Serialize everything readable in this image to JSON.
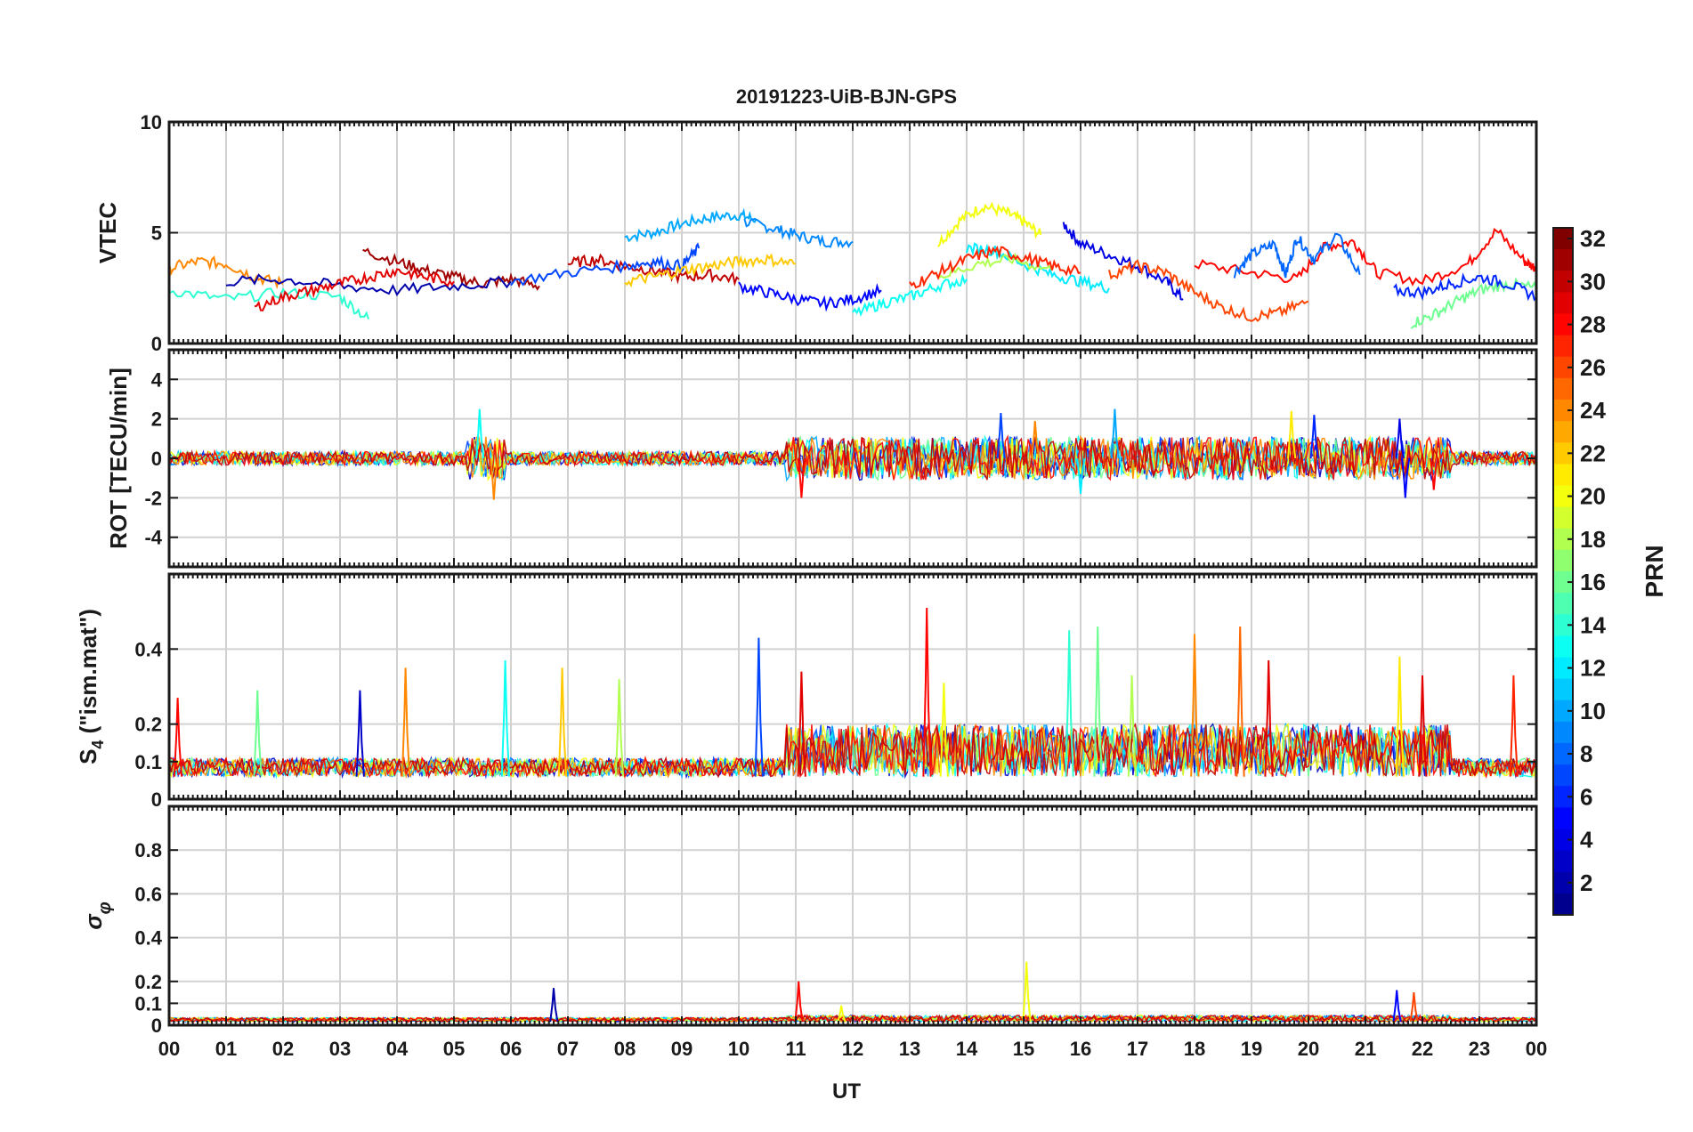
{
  "chart_data": {
    "type": "line",
    "title": "20191223-UiB-BJN-GPS",
    "xlabel": "UT",
    "x_range": [
      0,
      24
    ],
    "x_tick_labels": [
      "00",
      "01",
      "02",
      "03",
      "04",
      "05",
      "06",
      "07",
      "08",
      "09",
      "10",
      "11",
      "12",
      "13",
      "14",
      "15",
      "16",
      "17",
      "18",
      "19",
      "20",
      "21",
      "22",
      "23",
      "00"
    ],
    "grid": true,
    "panels": [
      {
        "id": "vtec",
        "ylabel": "VTEC",
        "ylim": [
          0,
          10
        ],
        "y_ticks": [
          0,
          5,
          10
        ],
        "y_tick_labels": [
          "0",
          "5",
          "10"
        ],
        "series": [
          {
            "prn": 10,
            "x": [
              8.0,
              8.5,
              9.0,
              9.5,
              10.0,
              10.3
            ],
            "y": [
              4.8,
              5.0,
              5.4,
              5.7,
              5.8,
              5.6
            ]
          },
          {
            "prn": 9,
            "x": [
              10.1,
              10.6,
              11.0,
              11.5,
              12.0
            ],
            "y": [
              5.5,
              5.2,
              4.9,
              4.6,
              4.6
            ]
          },
          {
            "prn": 20,
            "x": [
              13.5,
              13.9,
              14.3,
              14.7,
              15.0,
              15.3
            ],
            "y": [
              4.5,
              5.6,
              6.2,
              5.9,
              5.5,
              4.9
            ]
          },
          {
            "prn": 4,
            "x": [
              15.7,
              16.0,
              16.5,
              17.0,
              17.5,
              17.8
            ],
            "y": [
              5.4,
              4.5,
              4.0,
              3.5,
              2.8,
              2.0
            ]
          },
          {
            "prn": 28,
            "x": [
              18.0,
              19.0,
              19.8,
              20.3,
              20.8,
              21.2,
              22.0,
              22.8,
              23.3,
              23.8,
              24.0
            ],
            "y": [
              3.6,
              3.2,
              2.9,
              4.4,
              4.6,
              3.2,
              2.8,
              3.6,
              5.1,
              3.7,
              3.4
            ]
          },
          {
            "prn": 8,
            "x": [
              18.7,
              19.0,
              19.4,
              19.6,
              19.8,
              20.1,
              20.5,
              20.9
            ],
            "y": [
              3.2,
              4.0,
              4.5,
              3.1,
              4.8,
              3.8,
              4.9,
              3.1
            ]
          },
          {
            "prn": 24,
            "x": [
              0.0,
              0.5,
              1.0,
              1.5,
              2.0
            ],
            "y": [
              3.4,
              3.7,
              3.6,
              3.0,
              2.7
            ]
          },
          {
            "prn": 14,
            "x": [
              0.0,
              1.0,
              2.0,
              3.0,
              3.5
            ],
            "y": [
              2.4,
              2.0,
              2.3,
              2.1,
              1.1
            ]
          },
          {
            "prn": 31,
            "x": [
              3.4,
              4.0,
              4.5,
              5.0,
              5.5,
              6.0,
              6.5
            ],
            "y": [
              4.2,
              3.7,
              3.3,
              3.0,
              2.7,
              2.9,
              2.6
            ]
          },
          {
            "prn": 30,
            "x": [
              7.0,
              7.5,
              8.0,
              8.5,
              9.0,
              9.5,
              10.0
            ],
            "y": [
              3.6,
              3.8,
              3.5,
              3.3,
              3.0,
              3.1,
              2.9
            ]
          },
          {
            "prn": 5,
            "x": [
              10.0,
              10.5,
              11.0,
              11.5,
              12.0,
              12.5
            ],
            "y": [
              2.6,
              2.3,
              2.0,
              1.8,
              2.0,
              2.4
            ]
          },
          {
            "prn": 13,
            "x": [
              12.0,
              12.5,
              13.0,
              13.5,
              14.0
            ],
            "y": [
              1.3,
              1.8,
              2.1,
              2.6,
              2.9
            ]
          },
          {
            "prn": 26,
            "x": [
              16.5,
              17.0,
              17.5,
              18.0,
              18.5,
              19.0,
              19.5,
              20.0
            ],
            "y": [
              3.1,
              3.5,
              3.2,
              2.3,
              1.6,
              1.2,
              1.4,
              1.9
            ]
          },
          {
            "prn": 16,
            "x": [
              21.8,
              22.2,
              22.6,
              23.0,
              23.5,
              24.0
            ],
            "y": [
              0.9,
              1.3,
              1.9,
              2.4,
              2.7,
              2.5
            ]
          },
          {
            "prn": 6,
            "x": [
              21.5,
              22.0,
              22.5,
              23.0,
              23.5,
              24.0
            ],
            "y": [
              2.4,
              2.3,
              2.7,
              3.0,
              2.7,
              2.1
            ]
          },
          {
            "prn": 12,
            "x": [
              14.0,
              14.5,
              15.0,
              15.5,
              16.0,
              16.5
            ],
            "y": [
              4.3,
              4.2,
              3.6,
              3.1,
              2.8,
              2.5
            ]
          },
          {
            "prn": 18,
            "x": [
              13.5,
              14.2,
              14.8,
              15.5
            ],
            "y": [
              3.0,
              3.6,
              3.8,
              3.3
            ]
          },
          {
            "prn": 2,
            "x": [
              1.0,
              2.0,
              3.0,
              4.0,
              5.0,
              6.0
            ],
            "y": [
              2.8,
              2.9,
              2.6,
              2.4,
              2.6,
              2.8
            ]
          },
          {
            "prn": 7,
            "x": [
              6.0,
              7.0,
              8.0,
              8.5,
              9.0,
              9.3
            ],
            "y": [
              2.8,
              3.2,
              3.5,
              3.7,
              3.5,
              4.3
            ]
          },
          {
            "prn": 22,
            "x": [
              8.0,
              8.5,
              9.0,
              9.5,
              10.0,
              10.5,
              11.0
            ],
            "y": [
              2.8,
              3.0,
              3.3,
              3.5,
              3.7,
              3.8,
              3.6
            ]
          },
          {
            "prn": 27,
            "x": [
              13.0,
              13.5,
              14.0,
              14.5,
              15.0,
              15.5,
              16.0
            ],
            "y": [
              2.6,
              3.2,
              3.8,
              4.2,
              3.9,
              3.5,
              3.2
            ]
          },
          {
            "prn": 29,
            "x": [
              1.5,
              2.0,
              2.5,
              3.0,
              3.5,
              4.0,
              4.5,
              5.0
            ],
            "y": [
              1.6,
              2.1,
              2.4,
              2.7,
              3.0,
              3.3,
              3.0,
              2.8
            ]
          }
        ]
      },
      {
        "id": "rot",
        "ylabel": "ROT [TECU/min]",
        "ylim": [
          -5.5,
          5.5
        ],
        "y_ticks": [
          -4,
          -2,
          0,
          2,
          4
        ],
        "y_tick_labels": [
          "-4",
          "-2",
          "0",
          "2",
          "4"
        ],
        "spikes": [
          {
            "prn": 13,
            "x": 5.45,
            "y": 2.5
          },
          {
            "prn": 24,
            "x": 5.7,
            "y": -2.1
          },
          {
            "prn": 28,
            "x": 11.1,
            "y": -2.0
          },
          {
            "prn": 7,
            "x": 14.6,
            "y": 2.3
          },
          {
            "prn": 24,
            "x": 15.2,
            "y": 1.9
          },
          {
            "prn": 12,
            "x": 16.0,
            "y": -1.8
          },
          {
            "prn": 10,
            "x": 16.6,
            "y": 2.5
          },
          {
            "prn": 21,
            "x": 19.7,
            "y": 2.4
          },
          {
            "prn": 6,
            "x": 20.1,
            "y": 2.2
          },
          {
            "prn": 4,
            "x": 21.6,
            "y": 2.0
          },
          {
            "prn": 5,
            "x": 21.7,
            "y": -2.0
          },
          {
            "prn": 28,
            "x": 22.2,
            "y": -1.6
          }
        ]
      },
      {
        "id": "s4",
        "ylabel": "S4 (\"ism.mat\")",
        "ylim": [
          0,
          0.6
        ],
        "y_ticks": [
          0,
          0.1,
          0.2,
          0.4
        ],
        "y_tick_labels": [
          "0",
          "0.1",
          "0.2",
          "0.4"
        ],
        "spikes": [
          {
            "prn": 28,
            "x": 0.15,
            "y": 0.27
          },
          {
            "prn": 16,
            "x": 1.55,
            "y": 0.29
          },
          {
            "prn": 3,
            "x": 3.35,
            "y": 0.29
          },
          {
            "prn": 24,
            "x": 4.15,
            "y": 0.35
          },
          {
            "prn": 13,
            "x": 5.9,
            "y": 0.37
          },
          {
            "prn": 22,
            "x": 6.9,
            "y": 0.35
          },
          {
            "prn": 18,
            "x": 7.9,
            "y": 0.32
          },
          {
            "prn": 7,
            "x": 10.35,
            "y": 0.43
          },
          {
            "prn": 29,
            "x": 11.1,
            "y": 0.34
          },
          {
            "prn": 28,
            "x": 13.3,
            "y": 0.51
          },
          {
            "prn": 20,
            "x": 13.6,
            "y": 0.31
          },
          {
            "prn": 14,
            "x": 15.8,
            "y": 0.45
          },
          {
            "prn": 16,
            "x": 16.3,
            "y": 0.46
          },
          {
            "prn": 18,
            "x": 16.9,
            "y": 0.33
          },
          {
            "prn": 24,
            "x": 18.0,
            "y": 0.44
          },
          {
            "prn": 25,
            "x": 18.8,
            "y": 0.46
          },
          {
            "prn": 29,
            "x": 19.3,
            "y": 0.37
          },
          {
            "prn": 21,
            "x": 21.6,
            "y": 0.38
          },
          {
            "prn": 29,
            "x": 22.0,
            "y": 0.33
          },
          {
            "prn": 27,
            "x": 23.6,
            "y": 0.33
          }
        ]
      },
      {
        "id": "sigma_phi",
        "ylabel": "σφ",
        "ylim": [
          0,
          1.0
        ],
        "y_ticks": [
          0,
          0.1,
          0.2,
          0.4,
          0.6,
          0.8
        ],
        "y_tick_labels": [
          "0",
          "0.1",
          "0.2",
          "0.4",
          "0.6",
          "0.8"
        ],
        "spikes": [
          {
            "prn": 2,
            "x": 6.75,
            "y": 0.17
          },
          {
            "prn": 28,
            "x": 11.05,
            "y": 0.2
          },
          {
            "prn": 20,
            "x": 11.8,
            "y": 0.09
          },
          {
            "prn": 20,
            "x": 15.05,
            "y": 0.29
          },
          {
            "prn": 5,
            "x": 21.55,
            "y": 0.16
          },
          {
            "prn": 26,
            "x": 21.85,
            "y": 0.15
          }
        ]
      }
    ],
    "colorbar": {
      "label": "PRN",
      "range": [
        1,
        32
      ],
      "ticks": [
        2,
        4,
        6,
        8,
        10,
        12,
        14,
        16,
        18,
        20,
        22,
        24,
        26,
        28,
        30,
        32
      ],
      "colormap": "jet",
      "color_stops": [
        "#00008f",
        "#0000ff",
        "#0080ff",
        "#00ffff",
        "#80ff80",
        "#ffff00",
        "#ff8000",
        "#ff0000",
        "#800000"
      ]
    }
  }
}
